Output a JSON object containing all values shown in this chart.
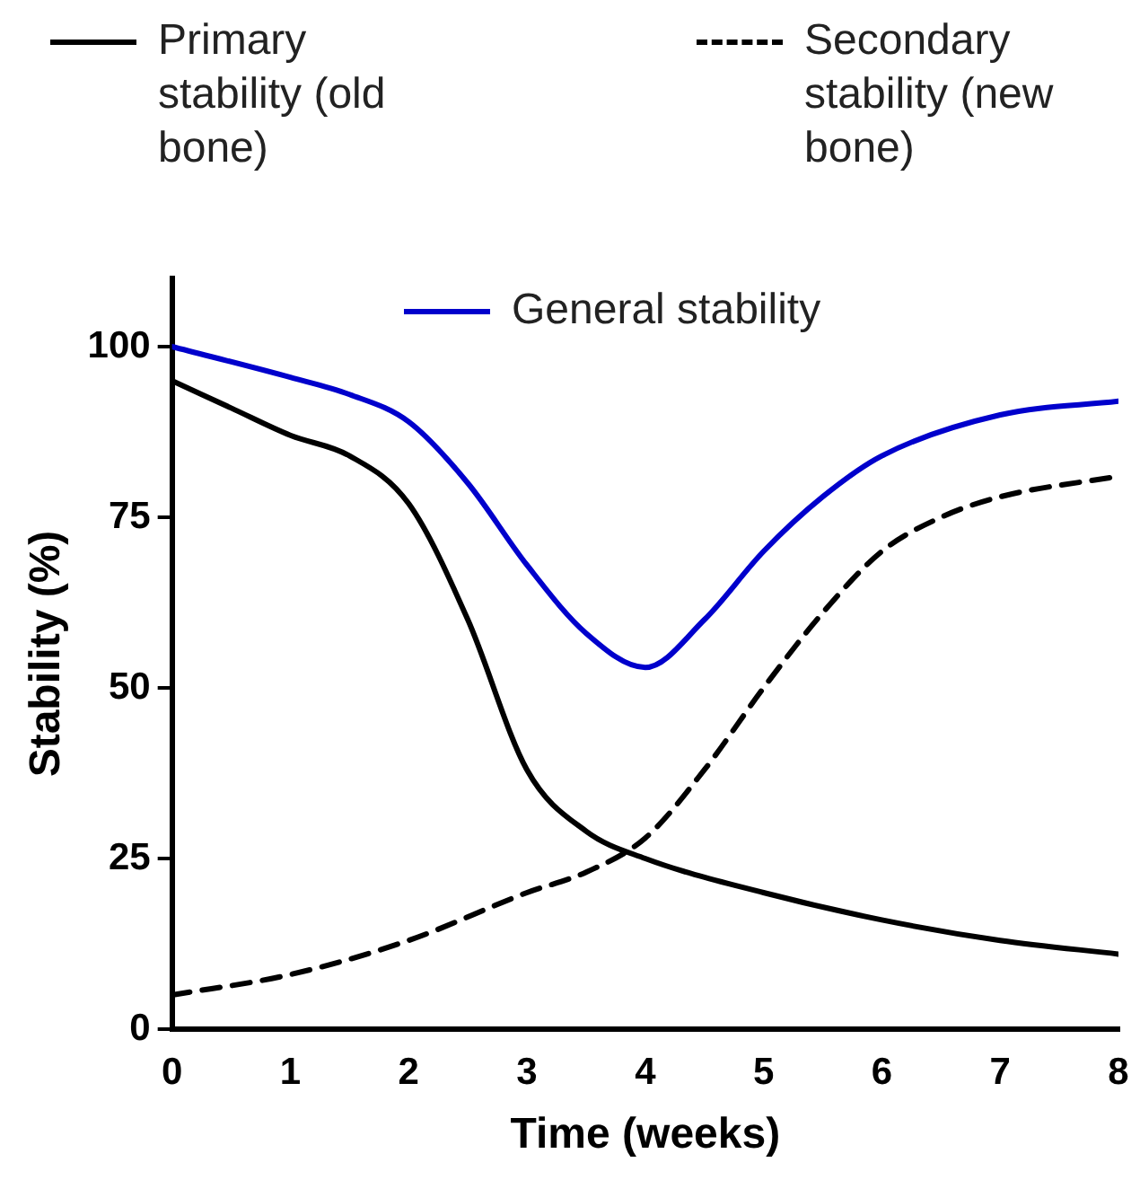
{
  "chart_data": {
    "type": "line",
    "xlabel": "Time (weeks)",
    "ylabel": "Stability (%)",
    "xlim": [
      0,
      8
    ],
    "xticks": [
      0,
      1,
      2,
      3,
      4,
      5,
      6,
      7,
      8
    ],
    "ylim": [
      0,
      110
    ],
    "yticks": [
      0,
      25,
      50,
      75,
      100
    ],
    "grid": false,
    "legend": "top",
    "marker": "none",
    "series": [
      {
        "name": "Primary stability (old bone)",
        "color": "#000000",
        "line_style": "solid",
        "x": [
          0,
          0.5,
          1,
          1.5,
          2,
          2.5,
          3,
          3.5,
          4,
          5,
          6,
          7,
          8
        ],
        "values": [
          95,
          91,
          87,
          84,
          77,
          60,
          38,
          29,
          25,
          20,
          16,
          13,
          11
        ]
      },
      {
        "name": "Secondary stability (new bone)",
        "color": "#000000",
        "line_style": "dashed",
        "x": [
          0,
          1,
          2,
          3,
          3.5,
          4,
          4.5,
          5,
          5.5,
          6,
          6.5,
          7,
          8
        ],
        "values": [
          5,
          8,
          13,
          20,
          23,
          28,
          38,
          50,
          61,
          70,
          75,
          78,
          81
        ]
      },
      {
        "name": "General stability",
        "color": "#0000cc",
        "line_style": "solid",
        "x": [
          0,
          1,
          1.5,
          2,
          2.5,
          3,
          3.5,
          4,
          4.5,
          5,
          5.5,
          6,
          7,
          8
        ],
        "values": [
          100,
          95.5,
          93,
          89,
          80,
          68,
          58,
          53,
          60,
          70,
          78,
          84,
          90,
          92
        ]
      }
    ]
  }
}
